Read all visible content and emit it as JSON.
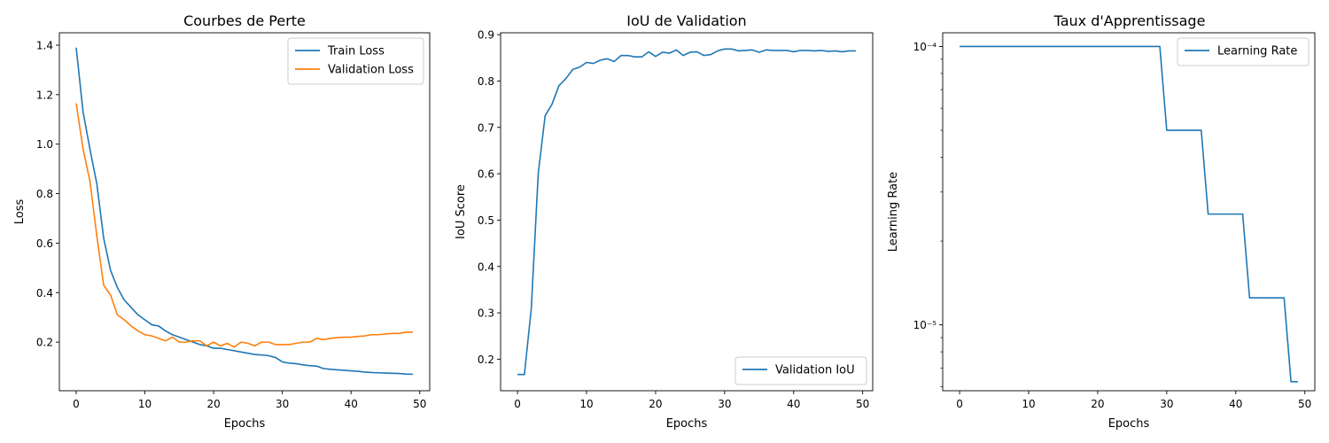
{
  "colors": {
    "blue": "#1f77b4",
    "orange": "#ff7f0e"
  },
  "chart_data": [
    {
      "type": "line",
      "title": "Courbes de Perte",
      "xlabel": "Epochs",
      "ylabel": "Loss",
      "xlim": [
        -2.45,
        51.45
      ],
      "ylim": [
        0.0035,
        1.45
      ],
      "xticks": [
        0,
        10,
        20,
        30,
        40,
        50
      ],
      "xtick_labels": [
        "0",
        "10",
        "20",
        "30",
        "40",
        "50"
      ],
      "yticks": [
        0.2,
        0.4,
        0.6,
        0.8,
        1.0,
        1.2,
        1.4
      ],
      "ytick_labels": [
        "0.2",
        "0.4",
        "0.6",
        "0.8",
        "1.0",
        "1.2",
        "1.4"
      ],
      "legend": "top-right",
      "series": [
        {
          "name": "Train Loss",
          "color": "#1f77b4",
          "x": [
            0,
            1,
            2,
            3,
            4,
            5,
            6,
            7,
            8,
            9,
            10,
            11,
            12,
            13,
            14,
            15,
            16,
            17,
            18,
            19,
            20,
            21,
            22,
            23,
            24,
            25,
            26,
            27,
            28,
            29,
            30,
            31,
            32,
            33,
            34,
            35,
            36,
            37,
            38,
            39,
            40,
            41,
            42,
            43,
            44,
            45,
            46,
            47,
            48,
            49
          ],
          "y": [
            1.39,
            1.13,
            0.98,
            0.84,
            0.62,
            0.49,
            0.42,
            0.37,
            0.34,
            0.31,
            0.29,
            0.27,
            0.265,
            0.245,
            0.23,
            0.22,
            0.21,
            0.2,
            0.19,
            0.185,
            0.175,
            0.175,
            0.17,
            0.165,
            0.16,
            0.155,
            0.15,
            0.148,
            0.145,
            0.138,
            0.12,
            0.115,
            0.113,
            0.108,
            0.105,
            0.103,
            0.093,
            0.09,
            0.088,
            0.086,
            0.084,
            0.082,
            0.079,
            0.077,
            0.076,
            0.075,
            0.074,
            0.073,
            0.071,
            0.07
          ]
        },
        {
          "name": "Validation Loss",
          "color": "#ff7f0e",
          "x": [
            0,
            1,
            2,
            3,
            4,
            5,
            6,
            7,
            8,
            9,
            10,
            11,
            12,
            13,
            14,
            15,
            16,
            17,
            18,
            19,
            20,
            21,
            22,
            23,
            24,
            25,
            26,
            27,
            28,
            29,
            30,
            31,
            32,
            33,
            34,
            35,
            36,
            37,
            38,
            39,
            40,
            41,
            42,
            43,
            44,
            45,
            46,
            47,
            48,
            49
          ],
          "y": [
            1.165,
            0.98,
            0.85,
            0.63,
            0.43,
            0.39,
            0.31,
            0.29,
            0.265,
            0.245,
            0.23,
            0.225,
            0.215,
            0.205,
            0.22,
            0.2,
            0.2,
            0.205,
            0.205,
            0.185,
            0.2,
            0.185,
            0.195,
            0.18,
            0.2,
            0.195,
            0.185,
            0.2,
            0.2,
            0.19,
            0.19,
            0.19,
            0.195,
            0.2,
            0.2,
            0.215,
            0.21,
            0.215,
            0.218,
            0.22,
            0.22,
            0.223,
            0.225,
            0.23,
            0.23,
            0.233,
            0.235,
            0.235,
            0.24,
            0.24
          ]
        }
      ]
    },
    {
      "type": "line",
      "title": "IoU de Validation",
      "xlabel": "Epochs",
      "ylabel": "IoU Score",
      "xlim": [
        -2.45,
        51.45
      ],
      "ylim": [
        0.132,
        0.904
      ],
      "xticks": [
        0,
        10,
        20,
        30,
        40,
        50
      ],
      "xtick_labels": [
        "0",
        "10",
        "20",
        "30",
        "40",
        "50"
      ],
      "yticks": [
        0.2,
        0.3,
        0.4,
        0.5,
        0.6,
        0.7,
        0.8,
        0.9
      ],
      "ytick_labels": [
        "0.2",
        "0.3",
        "0.4",
        "0.5",
        "0.6",
        "0.7",
        "0.8",
        "0.9"
      ],
      "legend": "bottom-right",
      "series": [
        {
          "name": "Validation IoU",
          "color": "#1f77b4",
          "x": [
            0,
            1,
            2,
            3,
            4,
            5,
            6,
            7,
            8,
            9,
            10,
            11,
            12,
            13,
            14,
            15,
            16,
            17,
            18,
            19,
            20,
            21,
            22,
            23,
            24,
            25,
            26,
            27,
            28,
            29,
            30,
            31,
            32,
            33,
            34,
            35,
            36,
            37,
            38,
            39,
            40,
            41,
            42,
            43,
            44,
            45,
            46,
            47,
            48,
            49
          ],
          "y": [
            0.167,
            0.167,
            0.31,
            0.6,
            0.725,
            0.75,
            0.79,
            0.805,
            0.825,
            0.83,
            0.84,
            0.838,
            0.845,
            0.848,
            0.842,
            0.855,
            0.855,
            0.852,
            0.852,
            0.863,
            0.853,
            0.862,
            0.86,
            0.867,
            0.855,
            0.862,
            0.863,
            0.855,
            0.857,
            0.865,
            0.869,
            0.869,
            0.865,
            0.866,
            0.867,
            0.862,
            0.867,
            0.866,
            0.866,
            0.866,
            0.863,
            0.866,
            0.866,
            0.865,
            0.866,
            0.864,
            0.865,
            0.863,
            0.865,
            0.865
          ]
        }
      ]
    },
    {
      "type": "line",
      "title": "Taux d'Apprentissage",
      "xlabel": "Epochs",
      "ylabel": "Learning Rate",
      "yscale": "log",
      "xlim": [
        -2.45,
        51.45
      ],
      "ylim": [
        5.8e-06,
        0.000112
      ],
      "xticks": [
        0,
        10,
        20,
        30,
        40,
        50
      ],
      "xtick_labels": [
        "0",
        "10",
        "20",
        "30",
        "40",
        "50"
      ],
      "yticks": [
        0.0001,
        1e-05
      ],
      "ytick_labels": [
        "10⁻⁴",
        "10⁻⁵"
      ],
      "legend": "top-right",
      "series": [
        {
          "name": "Learning Rate",
          "color": "#1f77b4",
          "x": [
            0,
            1,
            2,
            3,
            4,
            5,
            6,
            7,
            8,
            9,
            10,
            11,
            12,
            13,
            14,
            15,
            16,
            17,
            18,
            19,
            20,
            21,
            22,
            23,
            24,
            25,
            26,
            27,
            28,
            29,
            30,
            31,
            32,
            33,
            34,
            35,
            36,
            37,
            38,
            39,
            40,
            41,
            42,
            43,
            44,
            45,
            46,
            47,
            48,
            49
          ],
          "y": [
            0.0001,
            0.0001,
            0.0001,
            0.0001,
            0.0001,
            0.0001,
            0.0001,
            0.0001,
            0.0001,
            0.0001,
            0.0001,
            0.0001,
            0.0001,
            0.0001,
            0.0001,
            0.0001,
            0.0001,
            0.0001,
            0.0001,
            0.0001,
            0.0001,
            0.0001,
            0.0001,
            0.0001,
            0.0001,
            0.0001,
            0.0001,
            0.0001,
            0.0001,
            0.0001,
            5e-05,
            5e-05,
            5e-05,
            5e-05,
            5e-05,
            5e-05,
            2.5e-05,
            2.5e-05,
            2.5e-05,
            2.5e-05,
            2.5e-05,
            2.5e-05,
            1.25e-05,
            1.25e-05,
            1.25e-05,
            1.25e-05,
            1.25e-05,
            1.25e-05,
            6.25e-06,
            6.25e-06
          ]
        }
      ]
    }
  ]
}
